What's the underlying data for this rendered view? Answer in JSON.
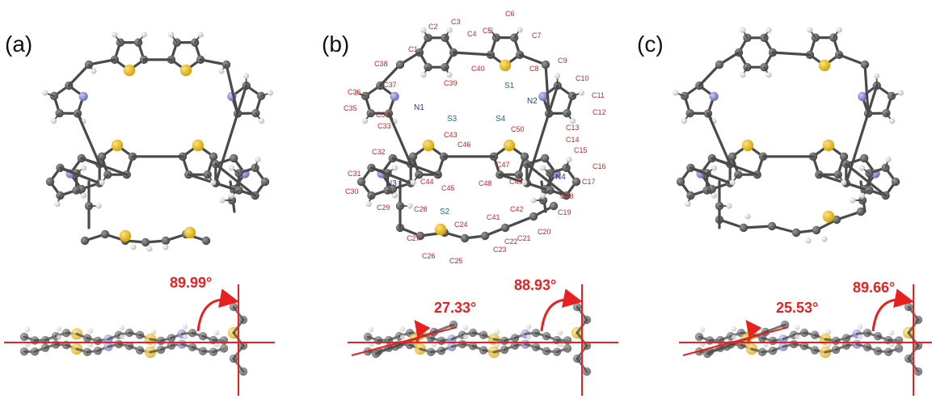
{
  "panels": [
    {
      "id": "a",
      "label": "(a)",
      "angles": [
        "89.99°"
      ]
    },
    {
      "id": "b",
      "label": "(b)",
      "angles": [
        "27.33°",
        "88.93°"
      ]
    },
    {
      "id": "c",
      "label": "(c)",
      "angles": [
        "25.53°",
        "89.66°"
      ]
    }
  ],
  "atom_labels": {
    "carbons": [
      "C1",
      "C2",
      "C3",
      "C4",
      "C5",
      "C6",
      "C7",
      "C8",
      "C9",
      "C10",
      "C11",
      "C12",
      "C13",
      "C14",
      "C15",
      "C16",
      "C17",
      "C18",
      "C19",
      "C20",
      "C21",
      "C22",
      "C23",
      "C24",
      "C25",
      "C26",
      "C27",
      "C28",
      "C29",
      "C30",
      "C31",
      "C32",
      "C33",
      "C34",
      "C35",
      "C36",
      "C37",
      "C38",
      "C39",
      "C40",
      "C41",
      "C42",
      "C43",
      "C44",
      "C45",
      "C46",
      "C47",
      "C48",
      "C49",
      "C50"
    ],
    "nitrogens": [
      "N1",
      "N2",
      "N3",
      "N4"
    ],
    "sulfurs": [
      "S1",
      "S2",
      "S3",
      "S4"
    ]
  },
  "colors": {
    "carbon": "#5a5a5a",
    "hydrogen": "#f2f2f2",
    "sulfur": "#f0c020",
    "nitrogen": "#8a8fd6",
    "annotation": "#e8201f"
  }
}
